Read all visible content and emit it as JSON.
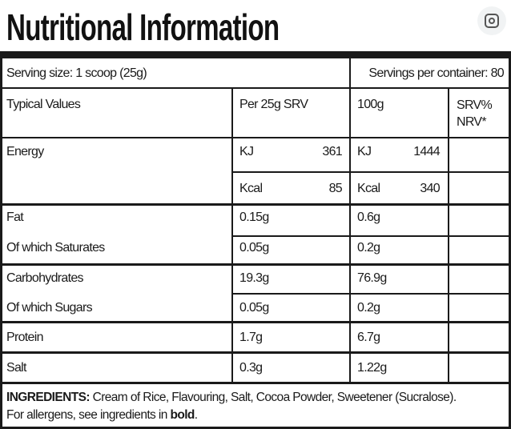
{
  "header": {
    "title": "Nutritional Information"
  },
  "serving": {
    "size": "Serving size: 1 scoop (25g)",
    "per_container": "Servings per container: 80"
  },
  "table": {
    "columns": [
      "Typical Values",
      "Per 25g SRV",
      "100g",
      "SRV% NRV*"
    ],
    "energy": {
      "label": "Energy",
      "rows": [
        [
          "KJ",
          361,
          "KJ",
          1444
        ],
        [
          "Kcal",
          85,
          "Kcal",
          340
        ]
      ]
    },
    "rows": [
      [
        "Fat",
        "0.15g",
        "0.6g"
      ],
      [
        "Of which Saturates",
        "0.05g",
        "0.2g"
      ],
      [
        "Carbohydrates",
        "19.3g",
        "76.9g"
      ],
      [
        "Of which Sugars",
        "0.05g",
        "0.2g"
      ],
      [
        "Protein",
        "1.7g",
        "6.7g"
      ],
      [
        "Salt",
        "0.3g",
        "1.22g"
      ]
    ]
  },
  "ingredients": {
    "heading": "INGREDIENTS:",
    "list": "Cream of Rice, Flavouring, Salt, Cocoa Powder, Sweetener (Sucralose).",
    "allergen_prefix": "For allergens, see ingredients in",
    "allergen_bold": "bold",
    "allergen_suffix": "."
  }
}
